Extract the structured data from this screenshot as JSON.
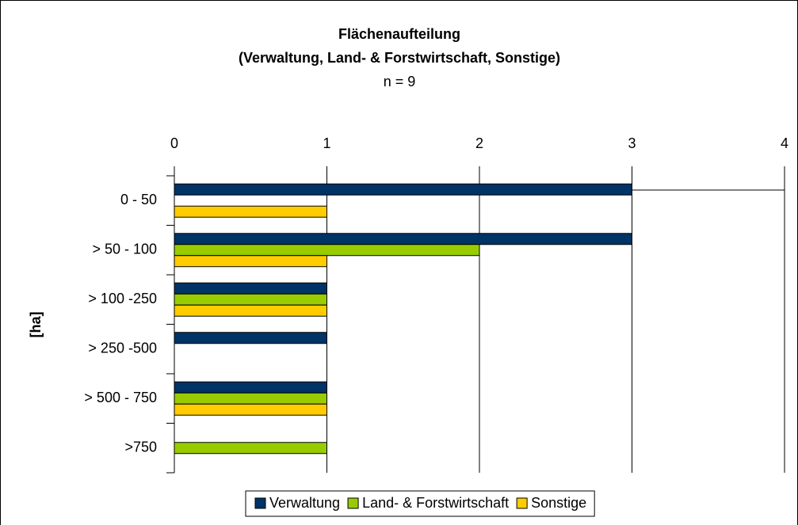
{
  "chart_data": {
    "type": "hbar",
    "title": "Flächenaufteilung",
    "subtitle": "(Verwaltung, Land- & Forstwirtschaft, Sonstige)",
    "annotation": "n = 9",
    "y_label": "[ha]",
    "categories": [
      "0 - 50",
      "> 50 - 100",
      "> 100 -250",
      "> 250 -500",
      "> 500 - 750",
      ">750"
    ],
    "series": [
      {
        "name": "Verwaltung",
        "color": "#003366",
        "values": [
          3,
          3,
          1,
          1,
          1,
          0
        ]
      },
      {
        "name": "Land- & Forstwirtschaft",
        "color": "#99cc00",
        "values": [
          0,
          2,
          1,
          0,
          1,
          1
        ]
      },
      {
        "name": "Sonstige",
        "color": "#ffcc00",
        "values": [
          1,
          1,
          1,
          0,
          1,
          0
        ]
      }
    ],
    "xlim": [
      0,
      4
    ],
    "xticks": [
      0,
      1,
      2,
      3,
      4
    ],
    "grid": true,
    "legend": "bottom"
  }
}
